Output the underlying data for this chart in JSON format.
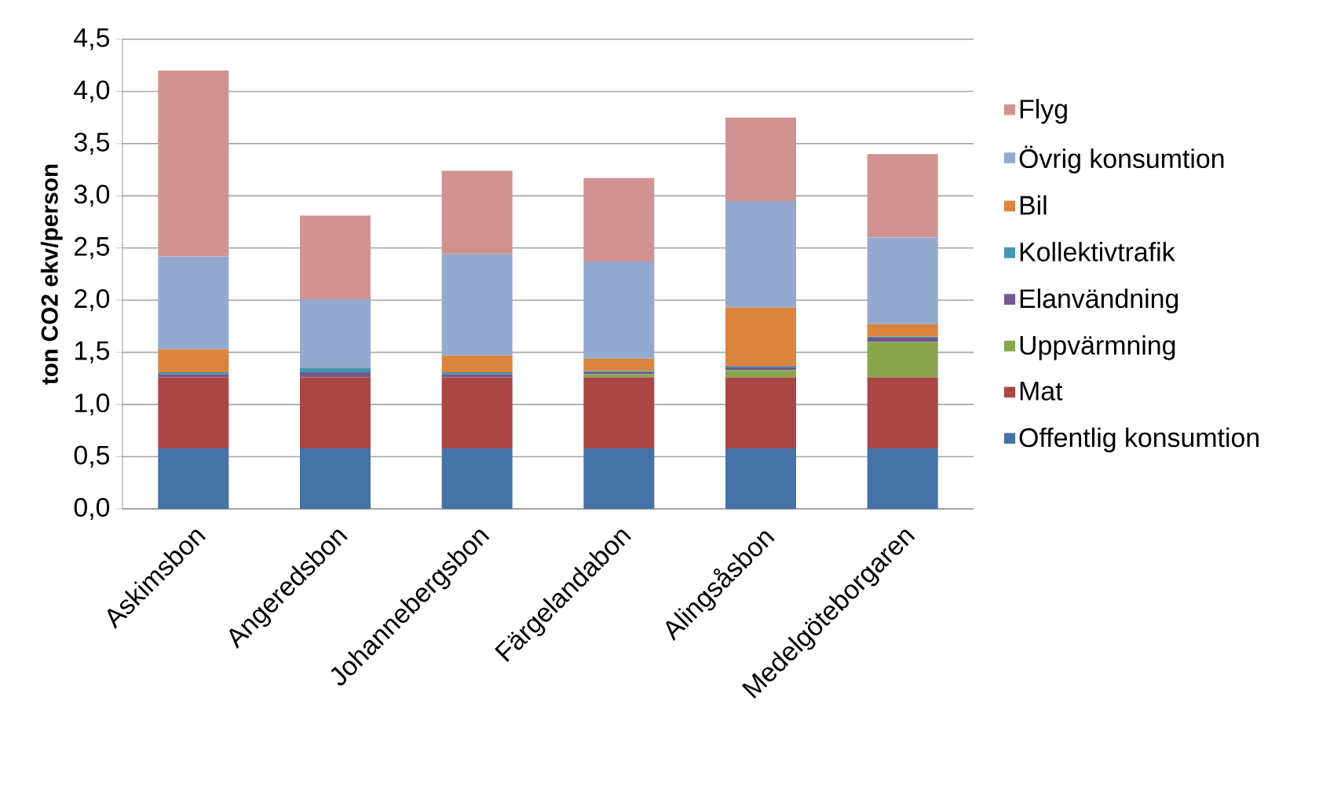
{
  "chart_data": {
    "type": "bar",
    "stacked": true,
    "ylabel": "ton CO2 ekv/person",
    "categories": [
      "Askimsbon",
      "Angeredsbon",
      "Johannebergsbon",
      "Färgelandabon",
      "Alingsåsbon",
      "Medelgöteborgaren"
    ],
    "series": [
      {
        "name": "Offentlig konsumtion",
        "color": "#4572a7",
        "values": [
          0.58,
          0.58,
          0.58,
          0.58,
          0.58,
          0.58
        ]
      },
      {
        "name": "Mat",
        "color": "#aa4643",
        "values": [
          0.68,
          0.68,
          0.68,
          0.68,
          0.68,
          0.68
        ]
      },
      {
        "name": "Uppvärmning",
        "color": "#89a54e",
        "values": [
          0,
          0,
          0,
          0.03,
          0.07,
          0.34
        ]
      },
      {
        "name": "Elanvändning",
        "color": "#71588f",
        "values": [
          0.03,
          0.05,
          0.03,
          0.02,
          0.03,
          0.04
        ]
      },
      {
        "name": "Kollektivtrafik",
        "color": "#4198af",
        "values": [
          0.02,
          0.04,
          0.02,
          0.01,
          0.01,
          0.01
        ]
      },
      {
        "name": "Bil",
        "color": "#db843d",
        "values": [
          0.22,
          0,
          0.16,
          0.12,
          0.56,
          0.12
        ]
      },
      {
        "name": "Övrig konsumtion",
        "color": "#93a9cf",
        "values": [
          0.89,
          0.66,
          0.97,
          0.93,
          1.02,
          0.83
        ]
      },
      {
        "name": "Flyg",
        "color": "#d19392",
        "values": [
          1.78,
          0.8,
          0.8,
          0.8,
          0.8,
          0.8
        ]
      }
    ],
    "ylim": [
      0,
      4.5
    ],
    "yticks": [
      {
        "value": 0,
        "label": "0,0"
      },
      {
        "value": 0.5,
        "label": "0,5"
      },
      {
        "value": 1,
        "label": "1,0"
      },
      {
        "value": 1.5,
        "label": "1,5"
      },
      {
        "value": 2,
        "label": "2,0"
      },
      {
        "value": 2.5,
        "label": "2,5"
      },
      {
        "value": 3,
        "label": "3,0"
      },
      {
        "value": 3.5,
        "label": "3,5"
      },
      {
        "value": 4,
        "label": "4,0"
      },
      {
        "value": 4.5,
        "label": "4,5"
      }
    ],
    "grid": "y",
    "legend": "right"
  }
}
